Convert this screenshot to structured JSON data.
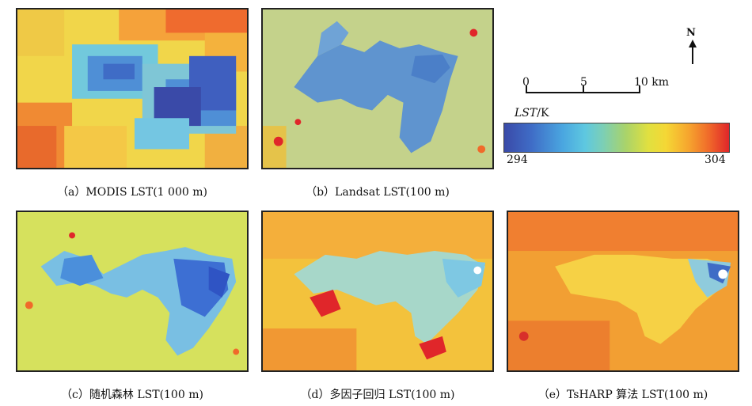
{
  "panels": [
    {
      "id": "a",
      "caption": "（a）MODIS LST(1 000 m)"
    },
    {
      "id": "b",
      "caption": "（b）Landsat LST(100 m)"
    },
    {
      "id": "c",
      "caption": "（c）随机森林 LST(100 m)"
    },
    {
      "id": "d",
      "caption": "（d）多因子回归 LST(100 m)"
    },
    {
      "id": "e",
      "caption": "（e）TsHARP 算法 LST(100 m)"
    }
  ],
  "north_label": "N",
  "scale_bar": {
    "labels": [
      "0",
      "5",
      "10 km"
    ]
  },
  "legend": {
    "title_italic": "LST",
    "title_unit": "/K",
    "min": "294",
    "max": "304"
  },
  "colors": {
    "cold": "#3a4aa8",
    "cool": "#4aa6e0",
    "mid": "#e0e040",
    "warm": "#f6a52e",
    "hot": "#e0262a"
  }
}
